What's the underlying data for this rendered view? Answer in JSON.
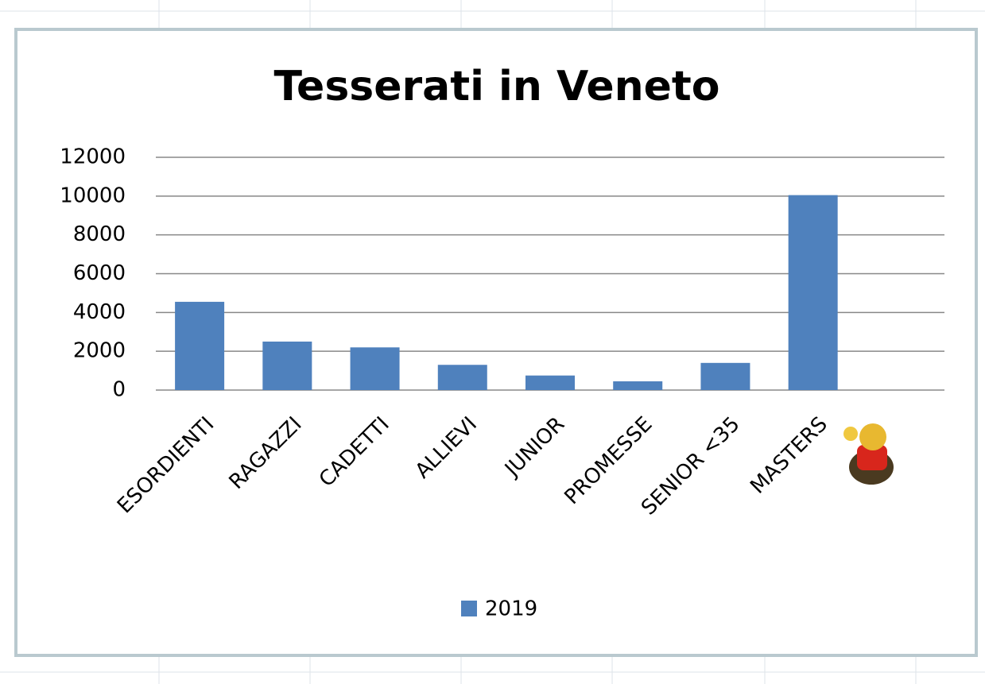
{
  "chart_data": {
    "type": "bar",
    "title": "Tesserati in Veneto",
    "categories": [
      "ESORDIENTI",
      "RAGAZZI",
      "CADETTI",
      "ALLIEVI",
      "JUNIOR",
      "PROMESSE",
      "SENIOR <35",
      "MASTERS",
      null
    ],
    "series": [
      {
        "name": "2019",
        "color": "#4f81bd",
        "values": [
          4550,
          2500,
          2200,
          1300,
          750,
          450,
          1400,
          10050,
          null
        ]
      }
    ],
    "ylim": [
      0,
      12000
    ],
    "yticks": [
      0,
      2000,
      4000,
      6000,
      8000,
      10000,
      12000
    ],
    "grid": true,
    "legend": "bottom"
  }
}
